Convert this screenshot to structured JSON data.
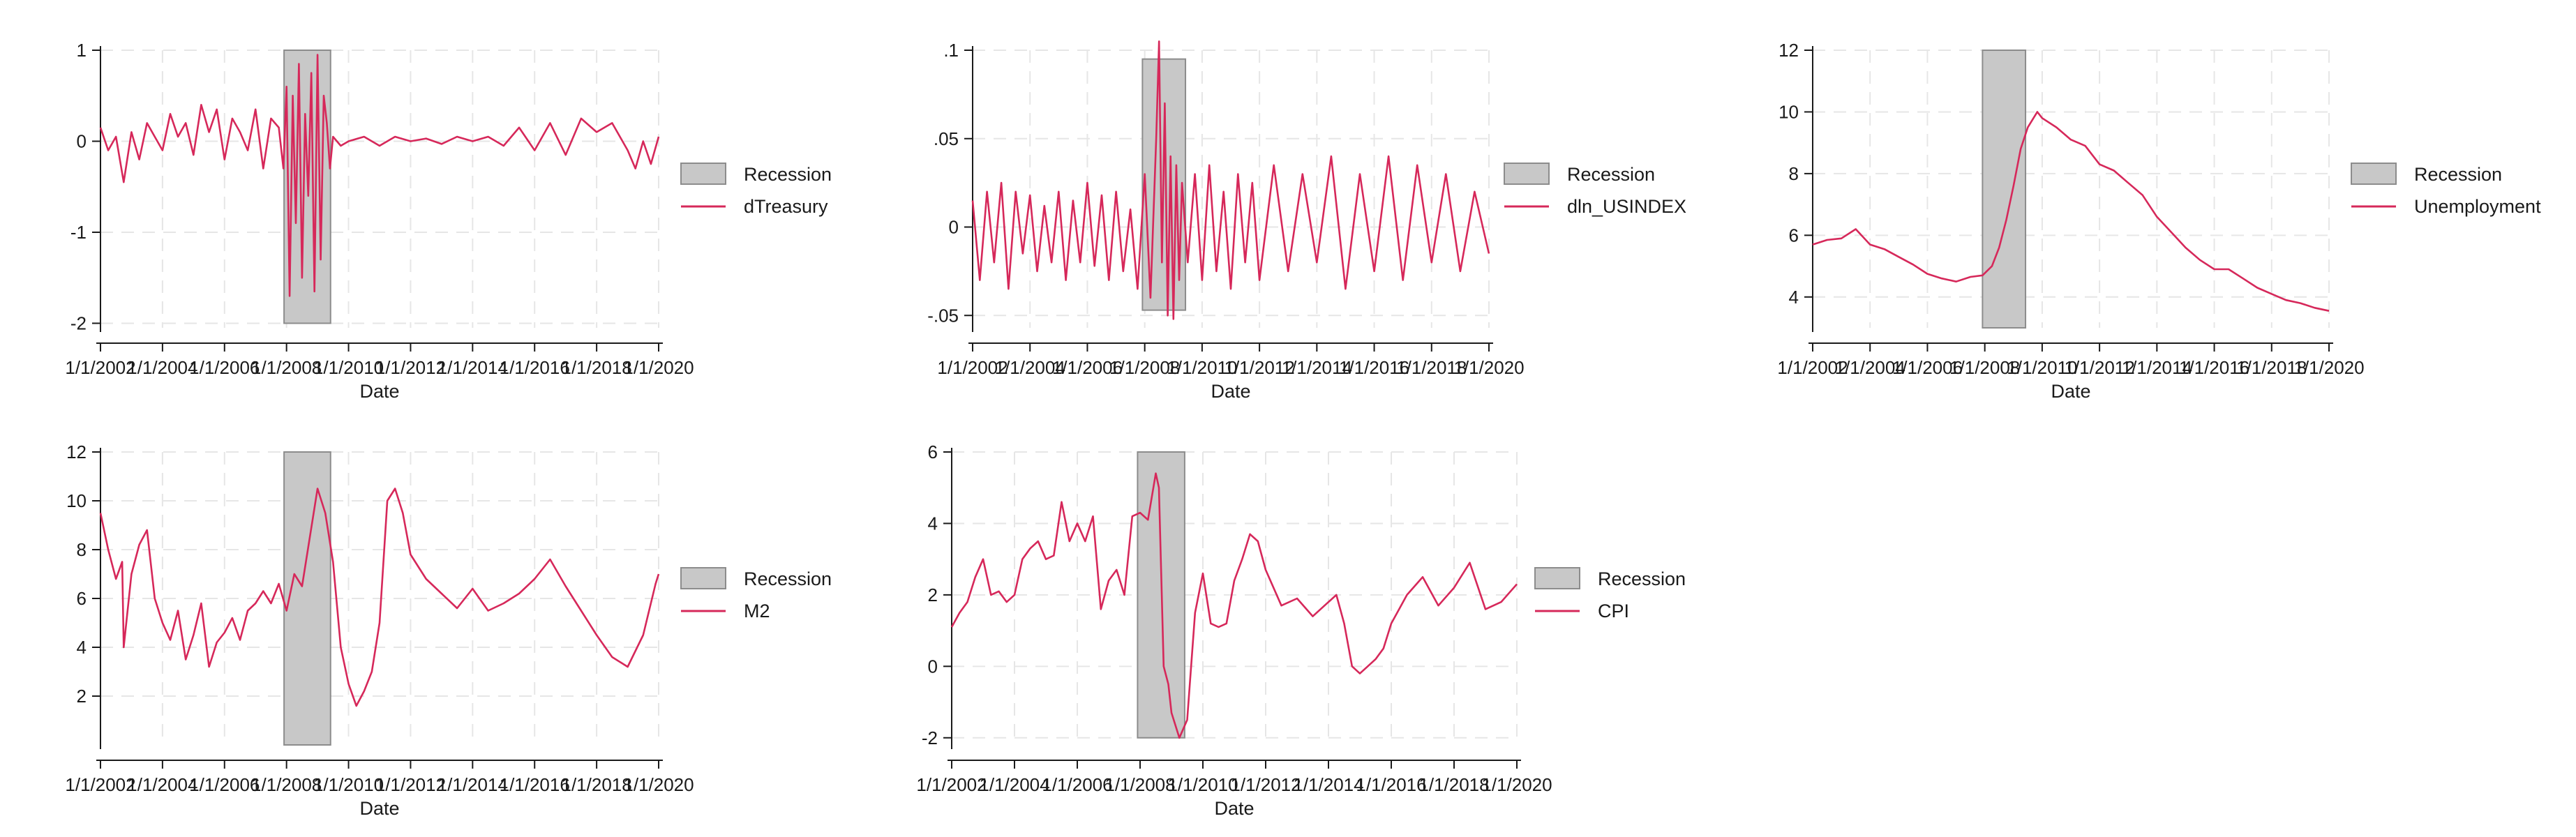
{
  "colors": {
    "series": "#d6285a",
    "recession_fill": "#c8c8c8",
    "recession_edge": "#8c8c8c",
    "grid": "#e6e6e6",
    "axis": "#1a1a1a"
  },
  "chart_data": [
    {
      "id": "dtreasury",
      "type": "line",
      "xlabel": "Date",
      "ylabel": "",
      "xlim": [
        2002.0,
        2020.0
      ],
      "ylim": [
        -2.05,
        1.0
      ],
      "yticks": [
        1,
        0,
        -1,
        -2
      ],
      "ytick_labels": [
        "1",
        "0",
        "-1",
        "-2"
      ],
      "xtick_labels": [
        "1/1/2002",
        "1/1/2004",
        "1/1/2006",
        "1/1/2008",
        "1/1/2010",
        "1/1/2012",
        "1/1/2014",
        "1/1/2016",
        "1/1/2018",
        "1/1/2020"
      ],
      "recession": {
        "start": 2007.92,
        "end": 2009.42,
        "ymin": -2.0,
        "ymax": 1.0
      },
      "legend": [
        "Recession",
        "dTreasury"
      ],
      "legend_position": "right",
      "grid": true,
      "series": [
        {
          "name": "dTreasury",
          "x": [
            2002.0,
            2002.25,
            2002.5,
            2002.75,
            2003.0,
            2003.25,
            2003.5,
            2003.75,
            2004.0,
            2004.25,
            2004.5,
            2004.75,
            2005.0,
            2005.25,
            2005.5,
            2005.75,
            2006.0,
            2006.25,
            2006.5,
            2006.75,
            2007.0,
            2007.25,
            2007.5,
            2007.75,
            2007.9,
            2008.0,
            2008.1,
            2008.2,
            2008.3,
            2008.4,
            2008.5,
            2008.6,
            2008.7,
            2008.8,
            2008.9,
            2009.0,
            2009.1,
            2009.2,
            2009.3,
            2009.4,
            2009.5,
            2009.75,
            2010.0,
            2010.5,
            2011.0,
            2011.5,
            2012.0,
            2012.5,
            2013.0,
            2013.5,
            2014.0,
            2014.5,
            2015.0,
            2015.5,
            2016.0,
            2016.5,
            2017.0,
            2017.5,
            2018.0,
            2018.5,
            2019.0,
            2019.25,
            2019.5,
            2019.75,
            2020.0
          ],
          "y": [
            0.15,
            -0.1,
            0.05,
            -0.45,
            0.1,
            -0.2,
            0.2,
            0.05,
            -0.1,
            0.3,
            0.05,
            0.2,
            -0.15,
            0.4,
            0.1,
            0.35,
            -0.2,
            0.25,
            0.1,
            -0.1,
            0.35,
            -0.3,
            0.25,
            0.15,
            -0.3,
            0.6,
            -1.7,
            0.5,
            -0.9,
            0.85,
            -1.5,
            0.3,
            -0.6,
            0.75,
            -1.65,
            0.95,
            -1.3,
            0.5,
            0.2,
            -0.3,
            0.05,
            -0.05,
            0.0,
            0.05,
            -0.05,
            0.05,
            0.0,
            0.03,
            -0.03,
            0.05,
            0.0,
            0.05,
            -0.05,
            0.15,
            -0.1,
            0.2,
            -0.15,
            0.25,
            0.1,
            0.2,
            -0.1,
            -0.3,
            0.0,
            -0.25,
            0.05
          ]
        }
      ]
    },
    {
      "id": "dln-usindex",
      "type": "line",
      "xlabel": "Date",
      "ylabel": "",
      "xlim": [
        2002.0,
        2020.0
      ],
      "ylim": [
        -0.057,
        0.1
      ],
      "yticks": [
        0.1,
        0.05,
        0,
        -0.05
      ],
      "ytick_labels": [
        ".1",
        ".05",
        "0",
        "-.05"
      ],
      "xtick_labels": [
        "1/1/2002",
        "1/1/2004",
        "1/1/2006",
        "1/1/2008",
        "1/1/2010",
        "1/1/2012",
        "1/1/2014",
        "1/1/2016",
        "1/1/2018",
        "1/1/2020"
      ],
      "recession": {
        "start": 2007.92,
        "end": 2009.42,
        "ymin": -0.047,
        "ymax": 0.095
      },
      "legend": [
        "Recession",
        "dln_USINDEX"
      ],
      "legend_position": "right",
      "grid": true,
      "series": [
        {
          "name": "dln_USINDEX",
          "x": [
            2002.0,
            2002.25,
            2002.5,
            2002.75,
            2003.0,
            2003.25,
            2003.5,
            2003.75,
            2004.0,
            2004.25,
            2004.5,
            2004.75,
            2005.0,
            2005.25,
            2005.5,
            2005.75,
            2006.0,
            2006.25,
            2006.5,
            2006.75,
            2007.0,
            2007.25,
            2007.5,
            2007.75,
            2008.0,
            2008.2,
            2008.4,
            2008.5,
            2008.6,
            2008.7,
            2008.8,
            2008.9,
            2009.0,
            2009.1,
            2009.2,
            2009.3,
            2009.5,
            2009.75,
            2010.0,
            2010.25,
            2010.5,
            2010.75,
            2011.0,
            2011.25,
            2011.5,
            2011.75,
            2012.0,
            2012.5,
            2013.0,
            2013.5,
            2014.0,
            2014.5,
            2015.0,
            2015.5,
            2016.0,
            2016.5,
            2017.0,
            2017.5,
            2018.0,
            2018.5,
            2019.0,
            2019.5,
            2020.0
          ],
          "y": [
            0.015,
            -0.03,
            0.02,
            -0.02,
            0.025,
            -0.035,
            0.02,
            -0.015,
            0.018,
            -0.025,
            0.012,
            -0.02,
            0.02,
            -0.03,
            0.015,
            -0.02,
            0.025,
            -0.022,
            0.018,
            -0.03,
            0.02,
            -0.025,
            0.01,
            -0.035,
            0.03,
            -0.04,
            0.05,
            0.105,
            -0.02,
            0.07,
            -0.05,
            0.04,
            -0.052,
            0.035,
            -0.03,
            0.025,
            -0.02,
            0.03,
            -0.03,
            0.035,
            -0.025,
            0.02,
            -0.035,
            0.03,
            -0.02,
            0.025,
            -0.03,
            0.035,
            -0.025,
            0.03,
            -0.02,
            0.04,
            -0.035,
            0.03,
            -0.025,
            0.04,
            -0.03,
            0.035,
            -0.02,
            0.03,
            -0.025,
            0.02,
            -0.015
          ]
        }
      ]
    },
    {
      "id": "unemployment",
      "type": "line",
      "xlabel": "Date",
      "ylabel": "",
      "xlim": [
        2002.0,
        2020.0
      ],
      "ylim": [
        3.0,
        12.0
      ],
      "yticks": [
        12,
        10,
        8,
        6,
        4
      ],
      "ytick_labels": [
        "12",
        "10",
        "8",
        "6",
        "4"
      ],
      "xtick_labels": [
        "1/1/2002",
        "1/1/2004",
        "1/1/2006",
        "1/1/2008",
        "1/1/2010",
        "1/1/2012",
        "1/1/2014",
        "1/1/2016",
        "1/1/2018",
        "1/1/2020"
      ],
      "recession": {
        "start": 2007.92,
        "end": 2009.42,
        "ymin": 3.0,
        "ymax": 12.0
      },
      "legend": [
        "Recession",
        "Unemployment"
      ],
      "legend_position": "right",
      "grid": true,
      "series": [
        {
          "name": "Unemployment",
          "x": [
            2002.0,
            2002.5,
            2003.0,
            2003.5,
            2004.0,
            2004.5,
            2005.0,
            2005.5,
            2006.0,
            2006.5,
            2007.0,
            2007.5,
            2007.92,
            2008.25,
            2008.5,
            2008.75,
            2009.0,
            2009.25,
            2009.5,
            2009.83,
            2010.0,
            2010.5,
            2011.0,
            2011.5,
            2012.0,
            2012.5,
            2013.0,
            2013.5,
            2014.0,
            2014.5,
            2015.0,
            2015.5,
            2016.0,
            2016.5,
            2017.0,
            2017.5,
            2018.0,
            2018.5,
            2019.0,
            2019.5,
            2020.0
          ],
          "y": [
            5.7,
            5.85,
            5.9,
            6.2,
            5.7,
            5.55,
            5.3,
            5.05,
            4.75,
            4.6,
            4.5,
            4.65,
            4.7,
            5.0,
            5.6,
            6.5,
            7.6,
            8.8,
            9.5,
            10.0,
            9.8,
            9.5,
            9.1,
            8.9,
            8.3,
            8.1,
            7.7,
            7.3,
            6.6,
            6.1,
            5.6,
            5.2,
            4.9,
            4.9,
            4.6,
            4.3,
            4.1,
            3.9,
            3.8,
            3.65,
            3.55
          ]
        }
      ]
    },
    {
      "id": "m2",
      "type": "line",
      "xlabel": "Date",
      "ylabel": "",
      "xlim": [
        2002.0,
        2020.0
      ],
      "ylim": [
        0.0,
        12.0
      ],
      "yticks": [
        12,
        10,
        8,
        6,
        4,
        2
      ],
      "ytick_labels": [
        "12",
        "10",
        "8",
        "6",
        "4",
        "2"
      ],
      "xtick_labels": [
        "1/1/2002",
        "1/1/2004",
        "1/1/2006",
        "1/1/2008",
        "1/1/2010",
        "1/1/2012",
        "1/1/2014",
        "1/1/2016",
        "1/1/2018",
        "1/1/2020"
      ],
      "recession": {
        "start": 2007.92,
        "end": 2009.42,
        "ymin": 0.0,
        "ymax": 12.0
      },
      "legend": [
        "Recession",
        "M2"
      ],
      "legend_position": "right",
      "grid": true,
      "series": [
        {
          "name": "M2",
          "x": [
            2002.0,
            2002.25,
            2002.5,
            2002.7,
            2002.75,
            2003.0,
            2003.25,
            2003.5,
            2003.75,
            2004.0,
            2004.25,
            2004.5,
            2004.75,
            2005.0,
            2005.25,
            2005.5,
            2005.75,
            2006.0,
            2006.25,
            2006.5,
            2006.75,
            2007.0,
            2007.25,
            2007.5,
            2007.75,
            2008.0,
            2008.25,
            2008.5,
            2008.75,
            2009.0,
            2009.25,
            2009.5,
            2009.75,
            2010.0,
            2010.25,
            2010.5,
            2010.75,
            2011.0,
            2011.25,
            2011.5,
            2011.75,
            2012.0,
            2012.5,
            2013.0,
            2013.5,
            2014.0,
            2014.5,
            2015.0,
            2015.5,
            2016.0,
            2016.5,
            2017.0,
            2017.5,
            2018.0,
            2018.5,
            2019.0,
            2019.5,
            2019.9,
            2020.0
          ],
          "y": [
            9.5,
            8.0,
            6.8,
            7.5,
            4.0,
            7.0,
            8.2,
            8.8,
            6.0,
            5.0,
            4.3,
            5.5,
            3.5,
            4.5,
            5.8,
            3.2,
            4.2,
            4.6,
            5.2,
            4.3,
            5.5,
            5.8,
            6.3,
            5.8,
            6.6,
            5.5,
            7.0,
            6.5,
            8.5,
            10.5,
            9.5,
            7.5,
            4.0,
            2.5,
            1.6,
            2.2,
            3.0,
            5.0,
            10.0,
            10.5,
            9.5,
            7.8,
            6.8,
            6.2,
            5.6,
            6.4,
            5.5,
            5.8,
            6.2,
            6.8,
            7.6,
            6.5,
            5.5,
            4.5,
            3.6,
            3.2,
            4.5,
            6.6,
            7.0
          ]
        }
      ]
    },
    {
      "id": "cpi",
      "type": "line",
      "xlabel": "Date",
      "ylabel": "",
      "xlim": [
        2002.0,
        2020.0
      ],
      "ylim": [
        -2.2,
        6.0
      ],
      "yticks": [
        6,
        4,
        2,
        0,
        -2
      ],
      "ytick_labels": [
        "6",
        "4",
        "2",
        "0",
        "-2"
      ],
      "xtick_labels": [
        "1/1/2002",
        "1/1/2004",
        "1/1/2006",
        "1/1/2008",
        "1/1/2010",
        "1/1/2012",
        "1/1/2014",
        "1/1/2016",
        "1/1/2018",
        "1/1/2020"
      ],
      "recession": {
        "start": 2007.92,
        "end": 2009.42,
        "ymin": -2.0,
        "ymax": 6.0
      },
      "legend": [
        "Recession",
        "CPI"
      ],
      "legend_position": "right",
      "grid": true,
      "series": [
        {
          "name": "CPI",
          "x": [
            2002.0,
            2002.25,
            2002.5,
            2002.75,
            2003.0,
            2003.25,
            2003.5,
            2003.75,
            2004.0,
            2004.25,
            2004.5,
            2004.75,
            2005.0,
            2005.25,
            2005.5,
            2005.75,
            2006.0,
            2006.25,
            2006.5,
            2006.75,
            2007.0,
            2007.25,
            2007.5,
            2007.75,
            2008.0,
            2008.25,
            2008.5,
            2008.6,
            2008.75,
            2008.9,
            2009.0,
            2009.25,
            2009.5,
            2009.75,
            2010.0,
            2010.25,
            2010.5,
            2010.75,
            2011.0,
            2011.25,
            2011.5,
            2011.75,
            2012.0,
            2012.5,
            2013.0,
            2013.5,
            2014.0,
            2014.25,
            2014.5,
            2014.75,
            2015.0,
            2015.25,
            2015.5,
            2015.75,
            2016.0,
            2016.5,
            2017.0,
            2017.5,
            2018.0,
            2018.5,
            2019.0,
            2019.5,
            2020.0
          ],
          "y": [
            1.1,
            1.5,
            1.8,
            2.5,
            3.0,
            2.0,
            2.1,
            1.8,
            2.0,
            3.0,
            3.3,
            3.5,
            3.0,
            3.1,
            4.6,
            3.5,
            4.0,
            3.5,
            4.2,
            1.6,
            2.4,
            2.7,
            2.0,
            4.2,
            4.3,
            4.1,
            5.4,
            5.0,
            0.0,
            -0.5,
            -1.3,
            -2.0,
            -1.5,
            1.5,
            2.6,
            1.2,
            1.1,
            1.2,
            2.4,
            3.0,
            3.7,
            3.5,
            2.7,
            1.7,
            1.9,
            1.4,
            1.8,
            2.0,
            1.2,
            0.0,
            -0.2,
            0.0,
            0.2,
            0.5,
            1.2,
            2.0,
            2.5,
            1.7,
            2.2,
            2.9,
            1.6,
            1.8,
            2.3
          ]
        }
      ]
    }
  ]
}
